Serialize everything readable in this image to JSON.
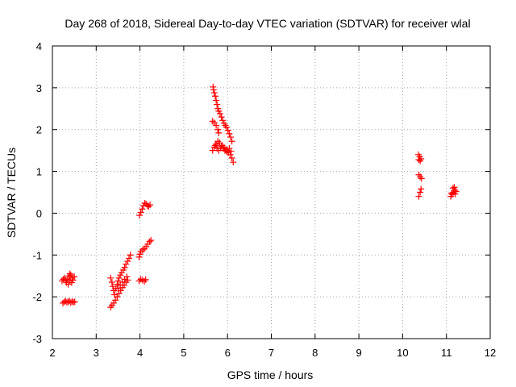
{
  "chart_data": {
    "type": "scatter",
    "title": "Day 268 of 2018, Sidereal Day-to-day VTEC variation (SDTVAR) for receiver wlal",
    "xlabel": "GPS time / hours",
    "ylabel": "SDTVAR / TECUs",
    "xlim": [
      2,
      12
    ],
    "ylim": [
      -3,
      4
    ],
    "xticks": [
      "2",
      "3",
      "4",
      "5",
      "6",
      "7",
      "8",
      "9",
      "10",
      "11",
      "12"
    ],
    "yticks": [
      "-3",
      "-2",
      "-1",
      "0",
      "1",
      "2",
      "3",
      "4"
    ],
    "grid": true,
    "marker": "+",
    "series": [
      {
        "name": "SDTVAR",
        "color": "#ff0000",
        "points": [
          [
            2.22,
            -1.62
          ],
          [
            2.25,
            -1.58
          ],
          [
            2.28,
            -1.55
          ],
          [
            2.3,
            -1.6
          ],
          [
            2.32,
            -1.66
          ],
          [
            2.35,
            -1.58
          ],
          [
            2.38,
            -1.5
          ],
          [
            2.4,
            -1.45
          ],
          [
            2.42,
            -1.48
          ],
          [
            2.45,
            -1.55
          ],
          [
            2.47,
            -1.6
          ],
          [
            2.5,
            -1.52
          ],
          [
            2.36,
            -1.7
          ],
          [
            2.4,
            -1.62
          ],
          [
            2.44,
            -1.66
          ],
          [
            2.24,
            -2.15
          ],
          [
            2.27,
            -2.12
          ],
          [
            2.3,
            -2.1
          ],
          [
            2.33,
            -2.13
          ],
          [
            2.36,
            -2.12
          ],
          [
            2.39,
            -2.1
          ],
          [
            2.42,
            -2.14
          ],
          [
            2.45,
            -2.11
          ],
          [
            2.48,
            -2.13
          ],
          [
            2.51,
            -2.12
          ],
          [
            3.33,
            -2.25
          ],
          [
            3.36,
            -2.2
          ],
          [
            3.4,
            -2.15
          ],
          [
            3.44,
            -2.08
          ],
          [
            3.48,
            -2.0
          ],
          [
            3.52,
            -1.92
          ],
          [
            3.56,
            -1.85
          ],
          [
            3.6,
            -1.78
          ],
          [
            3.64,
            -1.72
          ],
          [
            3.68,
            -1.65
          ],
          [
            3.72,
            -1.6
          ],
          [
            3.33,
            -1.55
          ],
          [
            3.36,
            -1.65
          ],
          [
            3.38,
            -1.75
          ],
          [
            3.4,
            -1.85
          ],
          [
            3.42,
            -1.95
          ],
          [
            3.45,
            -1.8
          ],
          [
            3.48,
            -1.7
          ],
          [
            3.5,
            -1.62
          ],
          [
            3.52,
            -1.55
          ],
          [
            3.55,
            -1.48
          ],
          [
            3.58,
            -1.42
          ],
          [
            3.62,
            -1.36
          ],
          [
            3.65,
            -1.3
          ],
          [
            3.68,
            -1.22
          ],
          [
            3.72,
            -1.15
          ],
          [
            3.75,
            -1.08
          ],
          [
            3.78,
            -1.0
          ],
          [
            3.5,
            -1.8
          ],
          [
            3.55,
            -1.72
          ],
          [
            3.6,
            -1.65
          ],
          [
            3.65,
            -1.58
          ],
          [
            3.7,
            -1.52
          ],
          [
            3.98,
            -1.62
          ],
          [
            4.02,
            -1.58
          ],
          [
            4.06,
            -1.6
          ],
          [
            4.1,
            -1.63
          ],
          [
            4.13,
            -1.59
          ],
          [
            3.98,
            -1.05
          ],
          [
            4.0,
            -0.98
          ],
          [
            4.02,
            -0.92
          ],
          [
            4.06,
            -0.88
          ],
          [
            4.1,
            -0.85
          ],
          [
            4.14,
            -0.8
          ],
          [
            4.18,
            -0.74
          ],
          [
            4.22,
            -0.68
          ],
          [
            4.25,
            -0.65
          ],
          [
            3.99,
            -0.05
          ],
          [
            4.02,
            0.02
          ],
          [
            4.05,
            0.1
          ],
          [
            4.08,
            0.18
          ],
          [
            4.11,
            0.24
          ],
          [
            4.14,
            0.22
          ],
          [
            4.17,
            0.18
          ],
          [
            4.2,
            0.16
          ],
          [
            4.23,
            0.2
          ],
          [
            5.67,
            3.02
          ],
          [
            5.68,
            2.95
          ],
          [
            5.7,
            2.88
          ],
          [
            5.72,
            2.8
          ],
          [
            5.74,
            2.7
          ],
          [
            5.76,
            2.6
          ],
          [
            5.78,
            2.5
          ],
          [
            5.8,
            2.44
          ],
          [
            5.83,
            2.38
          ],
          [
            5.86,
            2.3
          ],
          [
            5.89,
            2.22
          ],
          [
            5.92,
            2.15
          ],
          [
            5.95,
            2.1
          ],
          [
            5.98,
            2.05
          ],
          [
            6.01,
            1.98
          ],
          [
            6.04,
            1.9
          ],
          [
            6.07,
            1.82
          ],
          [
            6.1,
            1.72
          ],
          [
            5.66,
            2.2
          ],
          [
            5.7,
            2.16
          ],
          [
            5.74,
            2.1
          ],
          [
            5.78,
            2.0
          ],
          [
            5.8,
            1.92
          ],
          [
            5.66,
            1.5
          ],
          [
            5.7,
            1.58
          ],
          [
            5.74,
            1.65
          ],
          [
            5.78,
            1.72
          ],
          [
            5.82,
            1.68
          ],
          [
            5.86,
            1.6
          ],
          [
            5.9,
            1.55
          ],
          [
            5.94,
            1.5
          ],
          [
            5.98,
            1.48
          ],
          [
            6.02,
            1.45
          ],
          [
            6.06,
            1.4
          ],
          [
            6.1,
            1.32
          ],
          [
            6.13,
            1.22
          ],
          [
            5.72,
            1.62
          ],
          [
            5.76,
            1.55
          ],
          [
            5.8,
            1.5
          ],
          [
            5.84,
            1.56
          ],
          [
            5.88,
            1.62
          ],
          [
            5.92,
            1.58
          ],
          [
            5.96,
            1.52
          ],
          [
            6.0,
            1.5
          ],
          [
            6.04,
            1.55
          ],
          [
            6.08,
            1.48
          ],
          [
            10.36,
            1.4
          ],
          [
            10.39,
            1.35
          ],
          [
            10.42,
            1.3
          ],
          [
            10.37,
            1.28
          ],
          [
            10.4,
            1.25
          ],
          [
            10.37,
            0.92
          ],
          [
            10.4,
            0.87
          ],
          [
            10.43,
            0.83
          ],
          [
            10.37,
            0.4
          ],
          [
            10.4,
            0.5
          ],
          [
            10.42,
            0.58
          ],
          [
            11.1,
            0.4
          ],
          [
            11.13,
            0.45
          ],
          [
            11.16,
            0.5
          ],
          [
            11.19,
            0.55
          ],
          [
            11.22,
            0.52
          ],
          [
            11.15,
            0.6
          ],
          [
            11.18,
            0.62
          ],
          [
            11.12,
            0.48
          ],
          [
            11.2,
            0.46
          ]
        ]
      }
    ]
  }
}
